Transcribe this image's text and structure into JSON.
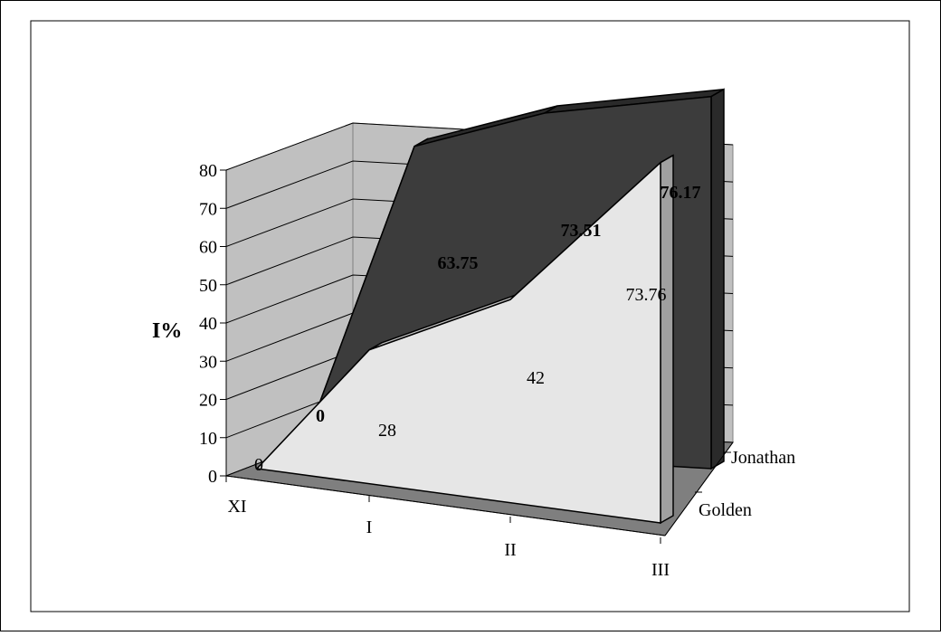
{
  "chart_data": {
    "type": "area",
    "variant": "3d-area",
    "title": "",
    "xlabel": "",
    "ylabel": "I%",
    "ylim": [
      0,
      80
    ],
    "yticks": [
      0,
      10,
      20,
      30,
      40,
      50,
      60,
      70,
      80
    ],
    "categories": [
      "XI",
      "I",
      "II",
      "III"
    ],
    "series": [
      {
        "name": "Golden",
        "values": [
          0,
          28,
          42,
          73.76
        ],
        "color": "#e6e6e6",
        "label_bold": false
      },
      {
        "name": "Jonathan",
        "values": [
          0,
          63.75,
          73.51,
          76.17
        ],
        "color": "#3c3c3c",
        "label_bold": true
      }
    ],
    "grid": true,
    "legend": "depth-axis"
  }
}
